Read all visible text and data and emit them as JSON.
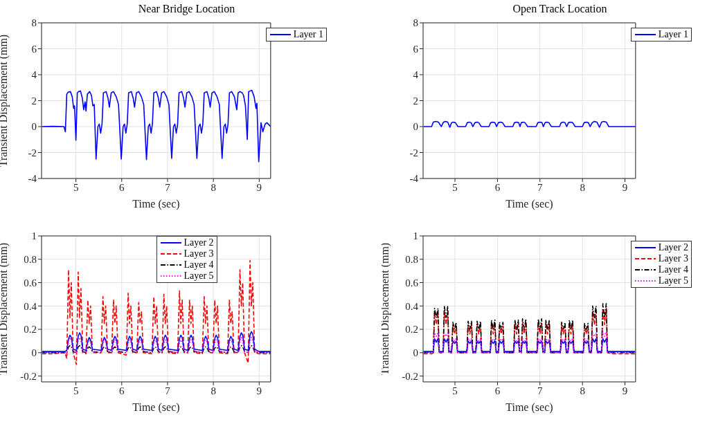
{
  "chart_data": [
    {
      "type": "line",
      "title": "Near Bridge Location",
      "xlabel": "Time (sec)",
      "ylabel": "Transient Displacement (mm)",
      "xlim": [
        4.25,
        9.25
      ],
      "xticks": [
        5,
        6,
        7,
        8,
        9
      ],
      "ylim": [
        -4,
        8
      ],
      "yticks": [
        -4,
        -2,
        0,
        2,
        4,
        6,
        8
      ],
      "grid": true,
      "legend": "top right",
      "x": [
        4.26,
        4.5,
        4.74,
        4.77,
        4.8,
        4.83,
        4.88,
        4.92,
        4.95,
        4.97,
        5.0,
        5.03,
        5.06,
        5.1,
        5.14,
        5.17,
        5.2,
        5.22,
        5.25,
        5.3,
        5.34,
        5.37,
        5.4,
        5.44,
        5.48,
        5.51,
        5.54,
        5.57,
        5.6,
        5.66,
        5.7,
        5.73,
        5.77,
        5.82,
        5.88,
        5.93,
        5.99,
        6.03,
        6.06,
        6.09,
        6.12,
        6.15,
        6.21,
        6.25,
        6.28,
        6.32,
        6.37,
        6.43,
        6.48,
        6.54,
        6.58,
        6.61,
        6.64,
        6.67,
        6.7,
        6.76,
        6.8,
        6.83,
        6.87,
        6.92,
        6.98,
        7.03,
        7.09,
        7.13,
        7.16,
        7.19,
        7.22,
        7.25,
        7.31,
        7.35,
        7.38,
        7.42,
        7.47,
        7.53,
        7.58,
        7.64,
        7.68,
        7.71,
        7.74,
        7.77,
        7.8,
        7.86,
        7.9,
        7.93,
        7.97,
        8.02,
        8.08,
        8.13,
        8.19,
        8.23,
        8.26,
        8.29,
        8.32,
        8.35,
        8.4,
        8.46,
        8.51,
        8.54,
        8.58,
        8.63,
        8.66,
        8.7,
        8.74,
        8.77,
        8.84,
        8.89,
        8.93,
        8.95,
        8.99,
        9.04,
        9.08,
        9.13,
        9.17,
        9.25
      ],
      "series": [
        {
          "name": "Layer 1",
          "color": "#0000ff",
          "line_style": "solid",
          "values": [
            0,
            0.02,
            0,
            -0.4,
            2.5,
            2.65,
            2.7,
            2.3,
            1.4,
            1.6,
            -1.05,
            2.6,
            2.7,
            2.75,
            2.2,
            1.3,
            1.9,
            1.2,
            2.5,
            2.7,
            2.4,
            1.6,
            1.7,
            -2.5,
            0,
            0.2,
            -0.5,
            0.2,
            2.6,
            2.7,
            2.2,
            1.5,
            2.6,
            2.7,
            2.3,
            1.7,
            -2.5,
            0,
            0.2,
            -0.5,
            0.2,
            2.6,
            2.7,
            2.2,
            1.5,
            2.6,
            2.7,
            2.3,
            1.7,
            -2.55,
            0,
            0.2,
            -0.5,
            0.2,
            2.6,
            2.7,
            2.2,
            1.5,
            2.6,
            2.7,
            2.3,
            1.7,
            -2.45,
            0,
            0.2,
            -0.5,
            0.2,
            2.6,
            2.7,
            2.2,
            1.5,
            2.6,
            2.7,
            2.3,
            1.7,
            -2.45,
            0,
            0.2,
            -0.5,
            0.2,
            2.6,
            2.7,
            2.2,
            1.5,
            2.6,
            2.7,
            2.3,
            1.7,
            -2.45,
            0,
            0.2,
            -0.5,
            0.2,
            2.6,
            2.7,
            2.3,
            1.3,
            2.6,
            2.7,
            2.6,
            2.4,
            1.6,
            -1.0,
            2.7,
            2.8,
            2.3,
            1.4,
            1.8,
            -2.7,
            0.3,
            -0.4,
            0.2,
            0.3,
            0
          ]
        }
      ]
    },
    {
      "type": "line",
      "title": "Open Track Location",
      "xlabel": "Time (sec)",
      "xlim": [
        4.25,
        9.25
      ],
      "xticks": [
        5,
        6,
        7,
        8,
        9
      ],
      "ylim": [
        -4,
        8
      ],
      "yticks": [
        -4,
        -2,
        0,
        2,
        4,
        6,
        8
      ],
      "grid": true,
      "legend": "top right",
      "x": [
        4.26,
        4.45,
        4.49,
        4.55,
        4.61,
        4.68,
        4.73,
        4.78,
        4.83,
        4.88,
        4.92,
        4.96,
        5.01,
        5.07,
        5.25,
        5.29,
        5.34,
        5.38,
        5.42,
        5.47,
        5.52,
        5.56,
        5.62,
        5.8,
        5.84,
        5.89,
        5.94,
        5.98,
        6.02,
        6.07,
        6.12,
        6.18,
        6.36,
        6.4,
        6.45,
        6.5,
        6.53,
        6.56,
        6.61,
        6.65,
        6.71,
        6.91,
        6.95,
        7.0,
        7.05,
        7.08,
        7.12,
        7.17,
        7.21,
        7.27,
        7.46,
        7.5,
        7.55,
        7.59,
        7.63,
        7.67,
        7.72,
        7.77,
        7.83,
        8.0,
        8.04,
        8.09,
        8.14,
        8.18,
        8.23,
        8.28,
        8.34,
        8.4,
        8.45,
        8.5,
        8.56,
        8.62,
        9.25
      ],
      "series": [
        {
          "name": "Layer 1",
          "color": "#0000ff",
          "line_style": "solid",
          "values": [
            0,
            0,
            0.35,
            0.4,
            0.35,
            0,
            0.35,
            0.4,
            0.35,
            -0.05,
            0.3,
            0.35,
            0.3,
            0,
            0,
            0.3,
            0.35,
            0.3,
            0,
            0.3,
            0.35,
            0.3,
            0,
            0,
            0.3,
            0.35,
            0.3,
            0,
            0.3,
            0.35,
            0.3,
            0,
            0,
            0.3,
            0.35,
            0.3,
            0,
            0.3,
            0.35,
            0.3,
            0,
            0,
            0.3,
            0.35,
            0.3,
            0,
            0.3,
            0.35,
            0.3,
            0,
            0,
            0.3,
            0.35,
            0.3,
            0,
            0.3,
            0.35,
            0.3,
            0,
            0,
            0.3,
            0.35,
            0.3,
            0,
            0.3,
            0.4,
            0.35,
            -0.05,
            0.35,
            0.4,
            0.35,
            0,
            0
          ]
        }
      ]
    },
    {
      "type": "line",
      "xlabel": "Time (sec)",
      "ylabel": "Transient Displacement (mm)",
      "xlim": [
        4.25,
        9.25
      ],
      "xticks": [
        5,
        6,
        7,
        8,
        9
      ],
      "ylim": [
        -0.25,
        1
      ],
      "yticks": [
        -0.2,
        0,
        0.2,
        0.4,
        0.6,
        0.8,
        1
      ],
      "grid": true,
      "legend": "top",
      "x": [
        4.26,
        4.5,
        4.76,
        4.8,
        4.84,
        4.87,
        4.9,
        4.94,
        5.01,
        5.05,
        5.08,
        5.11,
        5.15,
        5.22,
        5.26,
        5.29,
        5.32,
        5.36,
        5.55,
        5.59,
        5.62,
        5.65,
        5.69,
        5.78,
        5.82,
        5.85,
        5.88,
        5.92,
        6.1,
        6.14,
        6.17,
        6.2,
        6.24,
        6.33,
        6.37,
        6.4,
        6.43,
        6.47,
        6.66,
        6.7,
        6.73,
        6.76,
        6.8,
        6.88,
        6.92,
        6.95,
        6.98,
        7.02,
        7.22,
        7.26,
        7.29,
        7.32,
        7.36,
        7.44,
        7.48,
        7.51,
        7.54,
        7.58,
        7.76,
        7.8,
        7.83,
        7.86,
        7.9,
        7.99,
        8.03,
        8.06,
        8.09,
        8.13,
        8.31,
        8.35,
        8.38,
        8.41,
        8.45,
        8.54,
        8.58,
        8.61,
        8.64,
        8.68,
        8.76,
        8.8,
        8.83,
        8.86,
        8.9,
        9.0,
        9.25
      ],
      "series": [
        {
          "name": "Layer 2",
          "color": "#0000ff",
          "line_style": "solid",
          "values": [
            0.01,
            0.01,
            0.01,
            0.02,
            0.12,
            0.15,
            0.13,
            0.03,
            0.02,
            0.14,
            0.17,
            0.15,
            0.03,
            0.02,
            0.1,
            0.13,
            0.11,
            0.03,
            0.02,
            0.1,
            0.13,
            0.11,
            0.03,
            0.02,
            0.11,
            0.14,
            0.12,
            0.03,
            0.02,
            0.11,
            0.14,
            0.12,
            0.03,
            0.02,
            0.11,
            0.14,
            0.12,
            0.03,
            0.02,
            0.11,
            0.14,
            0.12,
            0.03,
            0.02,
            0.12,
            0.15,
            0.13,
            0.03,
            0.02,
            0.12,
            0.15,
            0.13,
            0.03,
            0.02,
            0.12,
            0.15,
            0.13,
            0.03,
            0.02,
            0.11,
            0.14,
            0.12,
            0.03,
            0.02,
            0.12,
            0.15,
            0.13,
            0.03,
            0.02,
            0.11,
            0.14,
            0.12,
            0.03,
            0.02,
            0.14,
            0.17,
            0.15,
            0.03,
            0.02,
            0.15,
            0.18,
            0.16,
            0.03,
            0.01,
            0.01
          ]
        },
        {
          "name": "Layer 3",
          "color": "#ff0000",
          "line_style": "dashed",
          "values": [
            -0.01,
            -0.01,
            0,
            -0.05,
            0.71,
            0.3,
            0.6,
            0,
            -0.1,
            0.69,
            0.3,
            0.55,
            0,
            -0.01,
            0.45,
            0.25,
            0.4,
            0,
            0,
            0.48,
            0.25,
            0.4,
            0,
            0,
            0.45,
            0.25,
            0.4,
            0,
            -0.02,
            0.51,
            0.25,
            0.4,
            0,
            0,
            0.43,
            0.25,
            0.35,
            0,
            -0.01,
            0.48,
            0.25,
            0.4,
            0,
            0,
            0.5,
            0.25,
            0.4,
            0,
            -0.01,
            0.53,
            0.25,
            0.45,
            0,
            0,
            0.45,
            0.25,
            0.4,
            0,
            -0.01,
            0.48,
            0.25,
            0.4,
            0,
            0,
            0.45,
            0.25,
            0.4,
            0,
            -0.01,
            0.45,
            0.25,
            0.35,
            0,
            0,
            0.71,
            0.4,
            0.6,
            0,
            -0.09,
            0.79,
            0.4,
            0.6,
            0,
            -0.01,
            -0.01
          ]
        },
        {
          "name": "Layer 4",
          "color": "#000000",
          "line_style": "dashdot",
          "values": [
            0,
            0,
            0,
            0,
            0.05,
            0.06,
            0.05,
            0.01,
            0,
            0.05,
            0.06,
            0.05,
            0.01,
            0,
            0.04,
            0.05,
            0.04,
            0.01,
            0,
            0.04,
            0.05,
            0.04,
            0.01,
            0,
            0.04,
            0.05,
            0.04,
            0.01,
            0,
            0.04,
            0.05,
            0.04,
            0.01,
            0,
            0.04,
            0.05,
            0.04,
            0.01,
            0,
            0.04,
            0.05,
            0.04,
            0.01,
            0,
            0.04,
            0.05,
            0.04,
            0.01,
            0,
            0.04,
            0.05,
            0.04,
            0.01,
            0,
            0.04,
            0.05,
            0.04,
            0.01,
            0,
            0.04,
            0.05,
            0.04,
            0.01,
            0,
            0.04,
            0.05,
            0.04,
            0.01,
            0,
            0.04,
            0.05,
            0.04,
            0.01,
            0,
            0.05,
            0.06,
            0.05,
            0.01,
            0,
            0.05,
            0.06,
            0.05,
            0.01,
            0,
            0
          ]
        },
        {
          "name": "Layer 5",
          "color": "#ff00ff",
          "line_style": "dotted",
          "values": [
            0,
            0,
            0,
            0,
            0.1,
            0.13,
            0.1,
            0.01,
            0,
            0.1,
            0.13,
            0.1,
            0.01,
            0,
            0.08,
            0.11,
            0.09,
            0.01,
            0,
            0.08,
            0.11,
            0.09,
            0.01,
            0,
            0.08,
            0.11,
            0.09,
            0.01,
            0,
            0.08,
            0.11,
            0.09,
            0.01,
            0,
            0.08,
            0.11,
            0.09,
            0.01,
            0,
            0.08,
            0.11,
            0.09,
            0.01,
            0,
            0.08,
            0.11,
            0.09,
            0.01,
            0,
            0.08,
            0.11,
            0.09,
            0.01,
            0,
            0.08,
            0.11,
            0.09,
            0.01,
            0,
            0.08,
            0.11,
            0.09,
            0.01,
            0,
            0.08,
            0.11,
            0.09,
            0.01,
            0,
            0.08,
            0.11,
            0.09,
            0.01,
            0,
            0.1,
            0.13,
            0.1,
            0.01,
            0,
            0.1,
            0.13,
            0.1,
            0.01,
            0,
            0
          ]
        }
      ]
    },
    {
      "type": "line",
      "xlabel": "Time (sec)",
      "ylabel": "Transient Displacement (mm)",
      "xlim": [
        4.25,
        9.25
      ],
      "xticks": [
        5,
        6,
        7,
        8,
        9
      ],
      "ylim": [
        -0.25,
        1
      ],
      "yticks": [
        -0.2,
        0,
        0.2,
        0.4,
        0.6,
        0.8,
        1
      ],
      "grid": true,
      "legend": "top right",
      "x": [
        4.26,
        4.45,
        4.49,
        4.52,
        4.56,
        4.6,
        4.63,
        4.72,
        4.75,
        4.79,
        4.83,
        4.86,
        4.92,
        4.95,
        4.99,
        5.03,
        5.06,
        5.28,
        5.31,
        5.35,
        5.39,
        5.42,
        5.49,
        5.52,
        5.56,
        5.6,
        5.63,
        5.83,
        5.86,
        5.9,
        5.94,
        5.97,
        6.02,
        6.05,
        6.09,
        6.13,
        6.16,
        6.38,
        6.41,
        6.45,
        6.49,
        6.52,
        6.56,
        6.59,
        6.63,
        6.67,
        6.7,
        6.93,
        6.96,
        7.0,
        7.04,
        7.07,
        7.11,
        7.14,
        7.18,
        7.22,
        7.25,
        7.48,
        7.51,
        7.55,
        7.59,
        7.62,
        7.66,
        7.69,
        7.73,
        7.77,
        7.8,
        8.02,
        8.05,
        8.09,
        8.13,
        8.16,
        8.21,
        8.24,
        8.28,
        8.32,
        8.35,
        8.45,
        8.48,
        8.52,
        8.56,
        8.59,
        8.7,
        9.24
      ],
      "series": [
        {
          "name": "Layer 2",
          "color": "#0000ff",
          "line_style": "solid",
          "values": [
            0.01,
            0.01,
            0.01,
            0.12,
            0.09,
            0.12,
            0.01,
            0.01,
            0.12,
            0.09,
            0.12,
            0.01,
            0.01,
            0.1,
            0.08,
            0.1,
            0.01,
            0.01,
            0.1,
            0.08,
            0.1,
            0.01,
            0.01,
            0.1,
            0.08,
            0.1,
            0.01,
            0.01,
            0.1,
            0.08,
            0.1,
            0.01,
            0.01,
            0.1,
            0.08,
            0.1,
            0.01,
            0.01,
            0.1,
            0.08,
            0.1,
            0.01,
            0.01,
            0.1,
            0.08,
            0.1,
            0.01,
            0.01,
            0.1,
            0.08,
            0.1,
            0.01,
            0.01,
            0.1,
            0.08,
            0.1,
            0.01,
            0.01,
            0.1,
            0.08,
            0.1,
            0.01,
            0.01,
            0.1,
            0.08,
            0.1,
            0.01,
            0.01,
            0.1,
            0.08,
            0.1,
            0.01,
            0.01,
            0.12,
            0.09,
            0.12,
            0.01,
            0.01,
            0.12,
            0.09,
            0.12,
            0.01,
            0.01,
            0.01
          ]
        },
        {
          "name": "Layer 3",
          "color": "#ff0000",
          "line_style": "dashed",
          "values": [
            -0.01,
            -0.01,
            0,
            0.34,
            0.24,
            0.34,
            0,
            0,
            0.36,
            0.24,
            0.36,
            0,
            0,
            0.23,
            0.16,
            0.23,
            0,
            0,
            0.24,
            0.16,
            0.24,
            0,
            0,
            0.24,
            0.16,
            0.24,
            0,
            0,
            0.25,
            0.16,
            0.25,
            0,
            0,
            0.23,
            0.16,
            0.23,
            0,
            0,
            0.25,
            0.16,
            0.25,
            0,
            0,
            0.26,
            0.16,
            0.26,
            0,
            0,
            0.26,
            0.16,
            0.26,
            0,
            0,
            0.25,
            0.16,
            0.25,
            0,
            0,
            0.23,
            0.16,
            0.23,
            0,
            0,
            0.25,
            0.16,
            0.25,
            0,
            0,
            0.23,
            0.16,
            0.23,
            0,
            0,
            0.36,
            0.24,
            0.36,
            0,
            0,
            0.38,
            0.24,
            0.38,
            0,
            -0.01,
            -0.01
          ]
        },
        {
          "name": "Layer 4",
          "color": "#000000",
          "line_style": "dashdot",
          "values": [
            0,
            0,
            0,
            0.38,
            0.3,
            0.38,
            0,
            0,
            0.4,
            0.3,
            0.4,
            0,
            0,
            0.26,
            0.2,
            0.26,
            0,
            0,
            0.27,
            0.2,
            0.27,
            0,
            0,
            0.27,
            0.2,
            0.27,
            0,
            0,
            0.28,
            0.2,
            0.28,
            0,
            0,
            0.26,
            0.2,
            0.26,
            0,
            0,
            0.28,
            0.2,
            0.28,
            0,
            0,
            0.29,
            0.2,
            0.29,
            0,
            0,
            0.29,
            0.2,
            0.29,
            0,
            0,
            0.28,
            0.2,
            0.28,
            0,
            0,
            0.26,
            0.2,
            0.26,
            0,
            0,
            0.28,
            0.2,
            0.28,
            0,
            0,
            0.25,
            0.2,
            0.25,
            0,
            0,
            0.4,
            0.3,
            0.4,
            0,
            0,
            0.42,
            0.3,
            0.42,
            0,
            0,
            0
          ]
        },
        {
          "name": "Layer 5",
          "color": "#ff00ff",
          "line_style": "dotted",
          "values": [
            0,
            0,
            0,
            0.17,
            0.14,
            0.17,
            0,
            0,
            0.17,
            0.14,
            0.17,
            0,
            0,
            0.12,
            0.1,
            0.12,
            0,
            0,
            0.12,
            0.1,
            0.12,
            0,
            0,
            0.12,
            0.1,
            0.12,
            0,
            0,
            0.12,
            0.1,
            0.12,
            0,
            0,
            0.12,
            0.1,
            0.12,
            0,
            0,
            0.12,
            0.1,
            0.12,
            0,
            0,
            0.12,
            0.1,
            0.12,
            0,
            0,
            0.12,
            0.1,
            0.12,
            0,
            0,
            0.12,
            0.1,
            0.12,
            0,
            0,
            0.12,
            0.1,
            0.12,
            0,
            0,
            0.12,
            0.1,
            0.12,
            0,
            0,
            0.12,
            0.1,
            0.12,
            0,
            0,
            0.17,
            0.14,
            0.17,
            0,
            0,
            0.18,
            0.14,
            0.18,
            0,
            0,
            0
          ]
        }
      ]
    }
  ]
}
